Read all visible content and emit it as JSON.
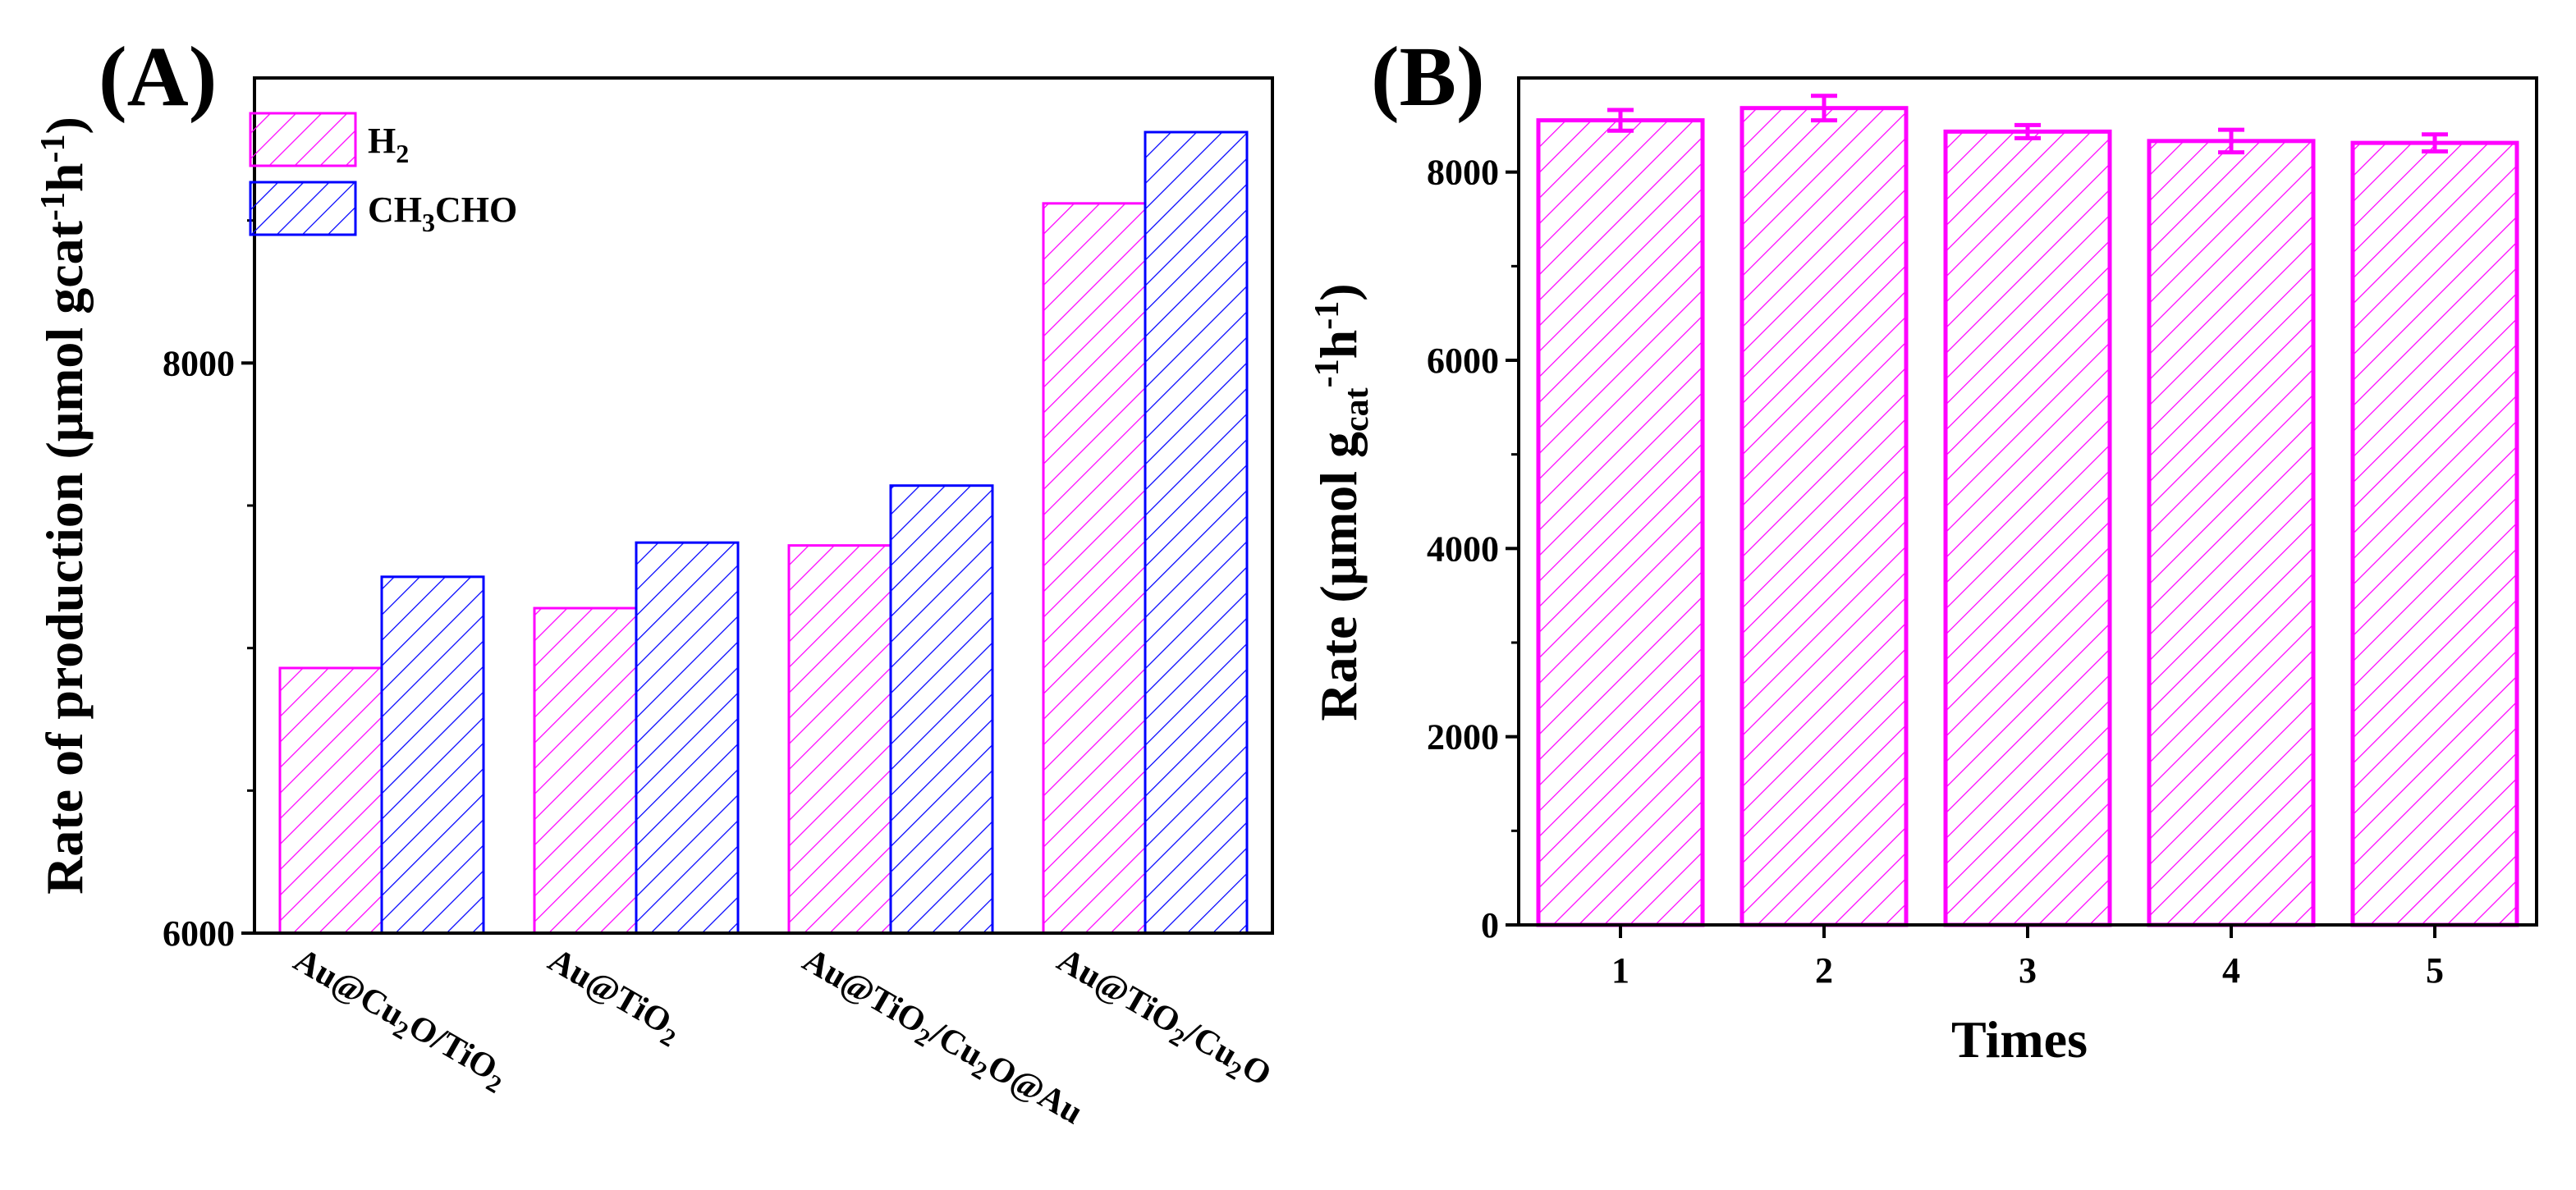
{
  "chart_data": [
    {
      "panel": "(A)",
      "type": "bar",
      "categories": [
        "Au@Cu2O/TiO2",
        "Au@TiO2",
        "Au@TiO2/Cu2O@Au",
        "Au@TiO2/Cu2O"
      ],
      "category_labels": [
        [
          {
            "t": "Au@Cu"
          },
          {
            "t": "2",
            "sub": true
          },
          {
            "t": "O/TiO"
          },
          {
            "t": "2",
            "sub": true
          }
        ],
        [
          {
            "t": "Au@TiO"
          },
          {
            "t": "2",
            "sub": true
          }
        ],
        [
          {
            "t": "Au@TiO"
          },
          {
            "t": "2",
            "sub": true
          },
          {
            "t": "/Cu"
          },
          {
            "t": "2",
            "sub": true
          },
          {
            "t": "O@Au"
          }
        ],
        [
          {
            "t": "Au@TiO"
          },
          {
            "t": "2",
            "sub": true
          },
          {
            "t": "/Cu"
          },
          {
            "t": "2",
            "sub": true
          },
          {
            "t": "O"
          }
        ]
      ],
      "series": [
        {
          "name": "H2",
          "label_main": "H",
          "label_sub": "2",
          "color": "#ff00ff",
          "values": [
            6930,
            7140,
            7360,
            8560
          ]
        },
        {
          "name": "CH3CHO",
          "label_parts": [
            {
              "t": "CH"
            },
            {
              "t": "3",
              "sub": true
            },
            {
              "t": "CHO"
            }
          ],
          "color": "#0000ff",
          "values": [
            7250,
            7370,
            7570,
            8810
          ]
        }
      ],
      "ylabel_main": "Rate of production",
      "ylabel_unit": "(μmol gcat",
      "ylabel_sup1": "-1",
      "ylabel_h": "h",
      "ylabel_sup2": "-1",
      "ylabel_close": ")",
      "ylim": [
        6000,
        9000
      ],
      "yticks": [
        "6000",
        "8000"
      ],
      "ytick_values": [
        6000,
        8000
      ],
      "legend_position": "top-left"
    },
    {
      "panel": "(B)",
      "type": "bar",
      "categories": [
        "1",
        "2",
        "3",
        "4",
        "5"
      ],
      "values": [
        8550,
        8680,
        8430,
        8330,
        8310
      ],
      "errors": [
        110,
        130,
        70,
        120,
        90
      ],
      "color": "#ff00ff",
      "xlabel": "Times",
      "ylabel_main": "Rate",
      "ylabel_unit": "(μmol g",
      "ylabel_cat": "cat",
      "ylabel_sup1": "-1",
      "ylabel_h": "h",
      "ylabel_sup2": "-1",
      "ylabel_close": ")",
      "ylim": [
        0,
        9000
      ],
      "yticks": [
        "0",
        "2000",
        "4000",
        "6000",
        "8000"
      ],
      "ytick_values": [
        0,
        2000,
        4000,
        6000,
        8000
      ]
    }
  ]
}
